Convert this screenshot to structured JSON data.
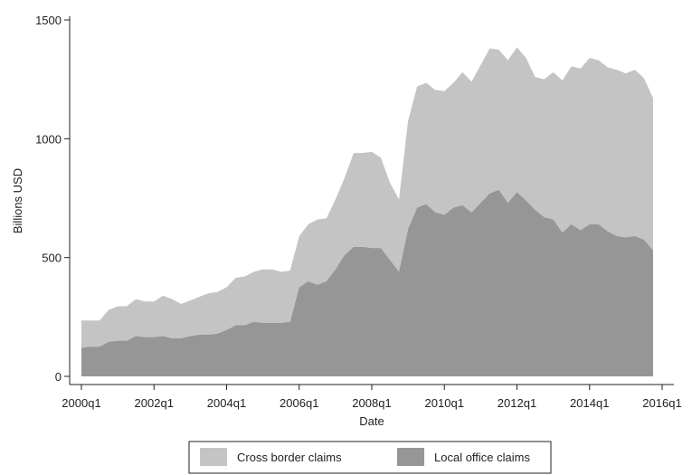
{
  "chart_data": {
    "type": "area",
    "stacked": true,
    "xlabel": "Date",
    "ylabel": "Billions USD",
    "x_start": "2000q1",
    "x_ticks": [
      "2000q1",
      "2002q1",
      "2004q1",
      "2006q1",
      "2008q1",
      "2010q1",
      "2012q1",
      "2014q1",
      "2016q1"
    ],
    "y_ticks": [
      0,
      500,
      1000,
      1500
    ],
    "ylim": [
      0,
      1500
    ],
    "grid": false,
    "legend_position": "bottom",
    "colors": {
      "cross_border": "#c4c4c4",
      "local_office": "#969696"
    },
    "series": [
      {
        "name": "Cross border claims",
        "values": [
          115,
          110,
          110,
          135,
          145,
          145,
          155,
          150,
          150,
          170,
          165,
          145,
          150,
          160,
          175,
          175,
          180,
          200,
          205,
          210,
          225,
          225,
          215,
          215,
          215,
          240,
          275,
          265,
          295,
          325,
          395,
          395,
          405,
          380,
          325,
          305,
          455,
          510,
          510,
          515,
          520,
          525,
          560,
          550,
          580,
          610,
          590,
          600,
          610,
          600,
          560,
          580,
          620,
          640,
          665,
          680,
          700,
          690,
          690,
          700,
          690,
          700,
          680,
          640
        ]
      },
      {
        "name": "Local office claims",
        "values": [
          120,
          125,
          125,
          145,
          150,
          150,
          170,
          165,
          165,
          170,
          160,
          160,
          170,
          175,
          175,
          180,
          195,
          215,
          215,
          230,
          225,
          225,
          225,
          230,
          375,
          400,
          385,
          400,
          450,
          510,
          545,
          545,
          540,
          540,
          490,
          440,
          620,
          710,
          725,
          690,
          680,
          710,
          720,
          690,
          730,
          770,
          785,
          730,
          775,
          740,
          700,
          670,
          660,
          605,
          640,
          615,
          640,
          640,
          610,
          590,
          585,
          590,
          575,
          530
        ]
      }
    ]
  }
}
